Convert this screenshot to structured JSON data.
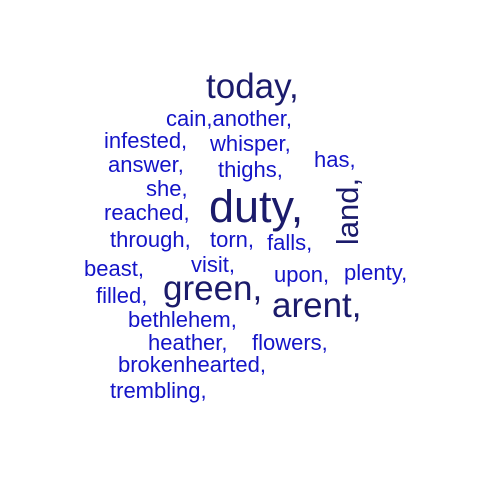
{
  "colors": {
    "dark": "#1b1b6b",
    "blue": "#1414c8",
    "background": "#ffffff"
  },
  "words": {
    "today": "today,",
    "cain_another": "cain,another,",
    "infested": "infested,",
    "whisper": "whisper,",
    "answer": "answer,",
    "thighs": "thighs,",
    "has": "has,",
    "she": "she,",
    "duty": "duty,",
    "land": "land,",
    "reached": "reached,",
    "through": "through,",
    "torn": "torn,",
    "falls": "falls,",
    "beast": "beast,",
    "visit": "visit,",
    "upon": "upon,",
    "plenty": "plenty,",
    "green": "green,",
    "filled": "filled,",
    "arent": "arent,",
    "bethlehem": "bethlehem,",
    "heather": "heather,",
    "flowers": "flowers,",
    "brokenhearted": "brokenhearted,",
    "trembling": "trembling,"
  }
}
